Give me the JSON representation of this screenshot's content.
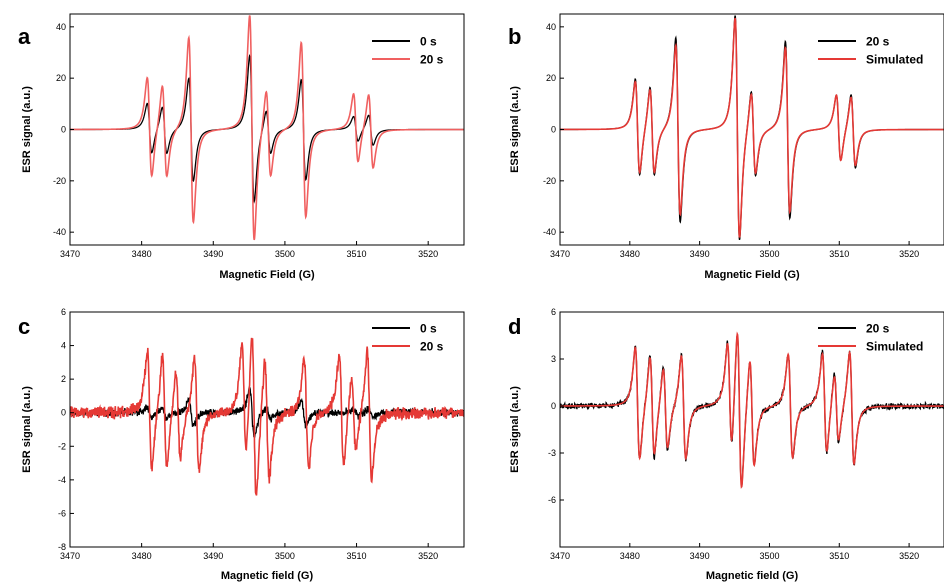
{
  "chart_data": [
    {
      "panel": "a",
      "type": "line",
      "xlabel": "Magnetic Field (G)",
      "ylabel": "ESR signal (a.u.)",
      "xlim": [
        3470,
        3525
      ],
      "ylim": [
        -45,
        45
      ],
      "xticks": [
        3470,
        3480,
        3490,
        3500,
        3510,
        3520
      ],
      "yticks": [
        -40,
        -20,
        0,
        20,
        40
      ],
      "legend_position": "top-right",
      "series": [
        {
          "name": "0 s",
          "color": "#000000",
          "peaks": [
            {
              "x": 3481.1,
              "amp": 9.8
            },
            {
              "x": 3483.2,
              "amp": 9.2
            },
            {
              "x": 3486.9,
              "amp": 20.0
            },
            {
              "x": 3495.4,
              "amp": 28.5
            },
            {
              "x": 3497.7,
              "amp": 8.6
            },
            {
              "x": 3502.6,
              "amp": 19.5
            },
            {
              "x": 3509.9,
              "amp": 4.9
            },
            {
              "x": 3512.0,
              "amp": 5.9
            }
          ]
        },
        {
          "name": "20 s",
          "color": "#f06060",
          "peaks": [
            {
              "x": 3481.1,
              "amp": 19.5
            },
            {
              "x": 3483.2,
              "amp": 18.0
            },
            {
              "x": 3486.9,
              "amp": 36.0
            },
            {
              "x": 3495.4,
              "amp": 44.0
            },
            {
              "x": 3497.7,
              "amp": 17.0
            },
            {
              "x": 3502.6,
              "amp": 34.0
            },
            {
              "x": 3509.9,
              "amp": 13.5
            },
            {
              "x": 3512.0,
              "amp": 14.5
            }
          ]
        }
      ]
    },
    {
      "panel": "b",
      "type": "line",
      "xlabel": "Magnetic Field (G)",
      "ylabel": "ESR signal (a.u.)",
      "xlim": [
        3470,
        3525
      ],
      "ylim": [
        -45,
        45
      ],
      "xticks": [
        3470,
        3480,
        3490,
        3500,
        3510,
        3520
      ],
      "yticks": [
        -40,
        -20,
        0,
        20,
        40
      ],
      "legend_position": "top-right",
      "series": [
        {
          "name": "20 s",
          "color": "#000000",
          "peaks": [
            {
              "x": 3481.1,
              "amp": 19.0
            },
            {
              "x": 3483.2,
              "amp": 17.5
            },
            {
              "x": 3486.9,
              "amp": 36.0
            },
            {
              "x": 3495.4,
              "amp": 44.0
            },
            {
              "x": 3497.7,
              "amp": 17.0
            },
            {
              "x": 3502.6,
              "amp": 34.5
            },
            {
              "x": 3509.9,
              "amp": 13.0
            },
            {
              "x": 3512.0,
              "amp": 14.5
            }
          ]
        },
        {
          "name": "Simulated",
          "color": "#e53935",
          "peaks": [
            {
              "x": 3481.1,
              "amp": 18.0
            },
            {
              "x": 3483.2,
              "amp": 16.5
            },
            {
              "x": 3486.9,
              "amp": 33.0
            },
            {
              "x": 3495.4,
              "amp": 43.0
            },
            {
              "x": 3497.7,
              "amp": 16.0
            },
            {
              "x": 3502.6,
              "amp": 32.0
            },
            {
              "x": 3509.9,
              "amp": 13.0
            },
            {
              "x": 3512.0,
              "amp": 13.5
            }
          ]
        }
      ]
    },
    {
      "panel": "c",
      "type": "line",
      "xlabel": "Magnetic field (G)",
      "ylabel": "ESR signal (a.u.)",
      "xlim": [
        3470,
        3525
      ],
      "ylim": [
        -8,
        6
      ],
      "xticks": [
        3470,
        3480,
        3490,
        3500,
        3510,
        3520
      ],
      "yticks": [
        -8,
        -6,
        -4,
        -2,
        0,
        2,
        4,
        6
      ],
      "legend_position": "top-right",
      "series": [
        {
          "name": "0 s",
          "color": "#000000",
          "peaks": [
            {
              "x": 3481.1,
              "amp": 0.3
            },
            {
              "x": 3483.2,
              "amp": 0.3
            },
            {
              "x": 3486.9,
              "amp": 0.8
            },
            {
              "x": 3495.4,
              "amp": 1.4
            },
            {
              "x": 3497.7,
              "amp": 0.3
            },
            {
              "x": 3502.6,
              "amp": 0.7
            },
            {
              "x": 3509.9,
              "amp": 0.2
            },
            {
              "x": 3512.0,
              "amp": 0.2
            }
          ]
        },
        {
          "name": "20 s",
          "color": "#e53935",
          "peaks": [
            {
              "x": 3481.1,
              "amp": 3.5
            },
            {
              "x": 3483.2,
              "amp": 3.4
            },
            {
              "x": 3485.1,
              "amp": 2.6
            },
            {
              "x": 3487.7,
              "amp": 3.4
            },
            {
              "x": 3494.3,
              "amp": 3.5
            },
            {
              "x": 3495.7,
              "amp": 5.2
            },
            {
              "x": 3497.5,
              "amp": 3.6
            },
            {
              "x": 3503.0,
              "amp": 3.3
            },
            {
              "x": 3507.9,
              "amp": 3.4
            },
            {
              "x": 3509.6,
              "amp": 2.2
            },
            {
              "x": 3511.8,
              "amp": 3.8
            }
          ]
        }
      ]
    },
    {
      "panel": "d",
      "type": "line",
      "xlabel": "Magnetic field (G)",
      "ylabel": "ESR signal (a.u.)",
      "xlim": [
        3470,
        3525
      ],
      "ylim": [
        -9,
        6
      ],
      "xticks": [
        3470,
        3480,
        3490,
        3500,
        3510,
        3520
      ],
      "yticks": [
        -6,
        -3,
        0,
        3,
        6
      ],
      "legend_position": "top-right",
      "series": [
        {
          "name": "20 s",
          "color": "#000000",
          "peaks": [
            {
              "x": 3481.1,
              "amp": 3.6
            },
            {
              "x": 3483.2,
              "amp": 3.4
            },
            {
              "x": 3485.1,
              "amp": 2.8
            },
            {
              "x": 3487.7,
              "amp": 3.4
            },
            {
              "x": 3494.3,
              "amp": 3.6
            },
            {
              "x": 3495.7,
              "amp": 5.2
            },
            {
              "x": 3497.5,
              "amp": 3.4
            },
            {
              "x": 3503.0,
              "amp": 3.3
            },
            {
              "x": 3507.9,
              "amp": 3.3
            },
            {
              "x": 3509.6,
              "amp": 2.4
            },
            {
              "x": 3511.8,
              "amp": 3.6
            }
          ]
        },
        {
          "name": "Simulated",
          "color": "#e53935",
          "peaks": [
            {
              "x": 3481.1,
              "amp": 3.6
            },
            {
              "x": 3483.2,
              "amp": 3.2
            },
            {
              "x": 3485.1,
              "amp": 2.6
            },
            {
              "x": 3487.7,
              "amp": 3.3
            },
            {
              "x": 3494.3,
              "amp": 3.5
            },
            {
              "x": 3495.7,
              "amp": 5.3
            },
            {
              "x": 3497.5,
              "amp": 3.5
            },
            {
              "x": 3503.0,
              "amp": 3.3
            },
            {
              "x": 3507.9,
              "amp": 3.2
            },
            {
              "x": 3509.6,
              "amp": 2.2
            },
            {
              "x": 3511.8,
              "amp": 3.6
            }
          ]
        }
      ]
    }
  ]
}
